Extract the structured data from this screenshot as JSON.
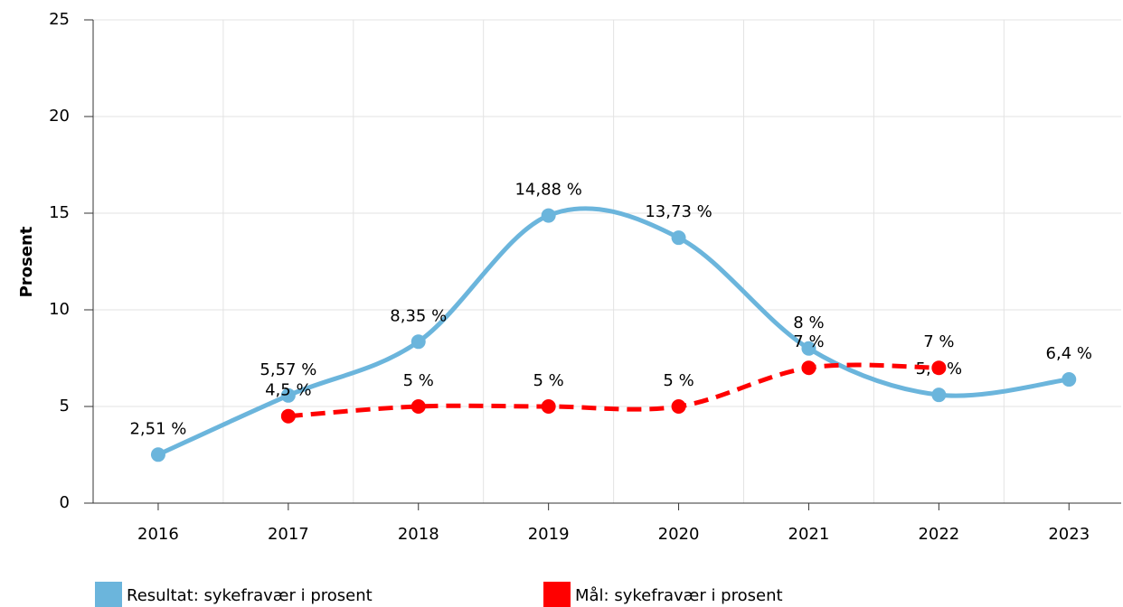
{
  "chart_data": {
    "type": "line",
    "ylabel": "Prosent",
    "categories": [
      "2016",
      "2017",
      "2018",
      "2019",
      "2020",
      "2021",
      "2022",
      "2023"
    ],
    "series": [
      {
        "name": "Resultat: sykefravær i prosent",
        "color": "#6bb5dc",
        "dashed": false,
        "values": [
          2.51,
          5.57,
          8.35,
          14.88,
          13.73,
          8,
          5.6,
          6.4
        ],
        "value_labels": [
          "2,51 %",
          "5,57 %",
          "8,35 %",
          "14,88 %",
          "13,73 %",
          "8 %",
          "5,6 %",
          "6,4 %"
        ]
      },
      {
        "name": "Mål: sykefravær i prosent",
        "color": "#ff0000",
        "dashed": true,
        "values": [
          null,
          4.5,
          5,
          5,
          5,
          7,
          7,
          null
        ],
        "value_labels": [
          null,
          "4,5 %",
          "5 %",
          "5 %",
          "5 %",
          "7 %",
          "7 %",
          null
        ]
      }
    ],
    "ylim": [
      0,
      25
    ],
    "yticks": [
      0,
      5,
      10,
      15,
      20,
      25
    ],
    "grid": true,
    "legend": "bottom"
  }
}
